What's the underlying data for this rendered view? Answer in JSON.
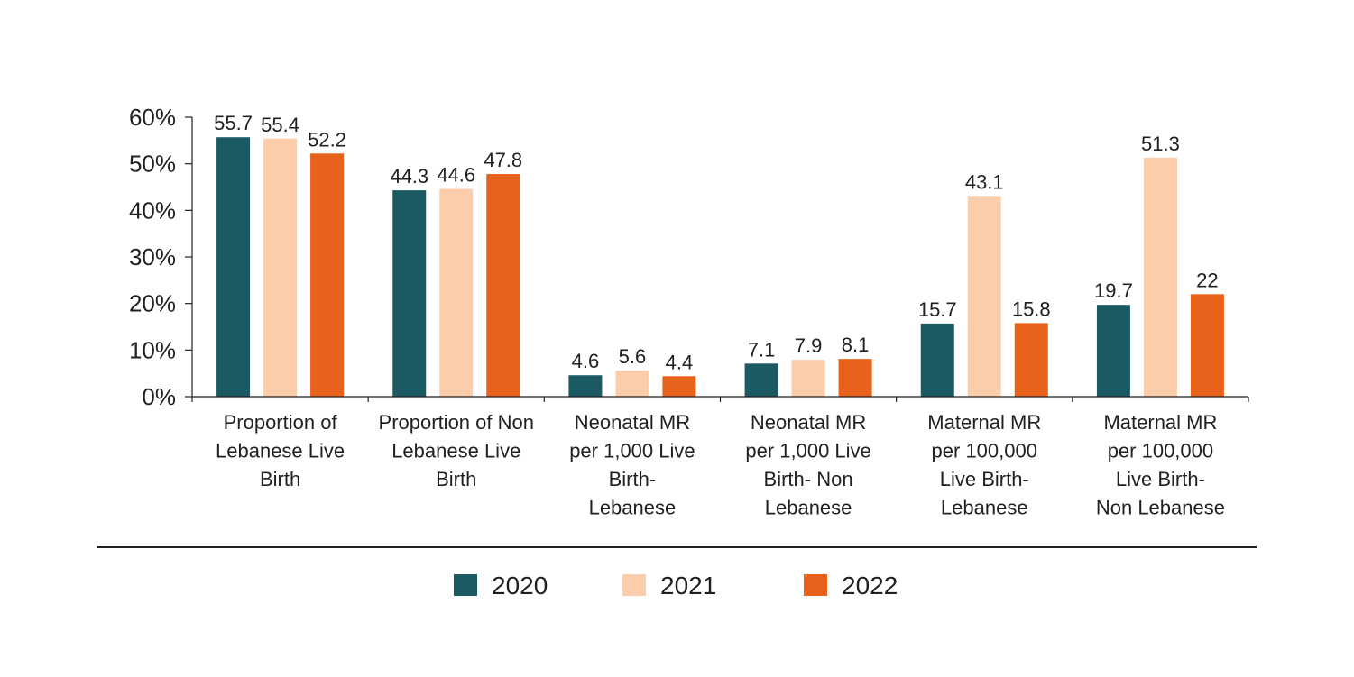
{
  "chart_data": {
    "type": "bar",
    "title": "",
    "xlabel": "",
    "ylabel": "",
    "ylim": [
      0,
      60
    ],
    "y_ticks": [
      "0%",
      "10%",
      "20%",
      "30%",
      "40%",
      "50%",
      "60%"
    ],
    "y_tick_values": [
      0,
      10,
      20,
      30,
      40,
      50,
      60
    ],
    "categories": [
      [
        "Proportion of",
        "Lebanese Live",
        "Birth"
      ],
      [
        "Proportion of Non",
        "Lebanese Live",
        "Birth"
      ],
      [
        "Neonatal MR",
        "per 1,000 Live",
        "Birth-",
        "Lebanese"
      ],
      [
        "Neonatal MR",
        "per 1,000 Live",
        "Birth- Non",
        "Lebanese"
      ],
      [
        "Maternal MR",
        "per 100,000",
        "Live Birth-",
        "Lebanese"
      ],
      [
        "Maternal MR",
        "per 100,000",
        "Live Birth-",
        "Non Lebanese"
      ]
    ],
    "series": [
      {
        "name": "2020",
        "color": "#1c5a63",
        "values": [
          55.7,
          44.3,
          4.6,
          7.1,
          15.7,
          19.7
        ],
        "labels": [
          "55.7",
          "44.3",
          "4.6",
          "7.1",
          "15.7",
          "19.7"
        ]
      },
      {
        "name": "2021",
        "color": "#fbcdaa",
        "values": [
          55.4,
          44.6,
          5.6,
          7.9,
          43.1,
          51.3
        ],
        "labels": [
          "55.4",
          "44.6",
          "5.6",
          "7.9",
          "43.1",
          "51.3"
        ]
      },
      {
        "name": "2022",
        "color": "#e8621c",
        "values": [
          52.2,
          47.8,
          4.4,
          8.1,
          15.8,
          22
        ],
        "labels": [
          "52.2",
          "47.8",
          "4.4",
          "8.1",
          "15.8",
          "22"
        ]
      }
    ],
    "legend_position": "bottom-center",
    "grid": false
  }
}
